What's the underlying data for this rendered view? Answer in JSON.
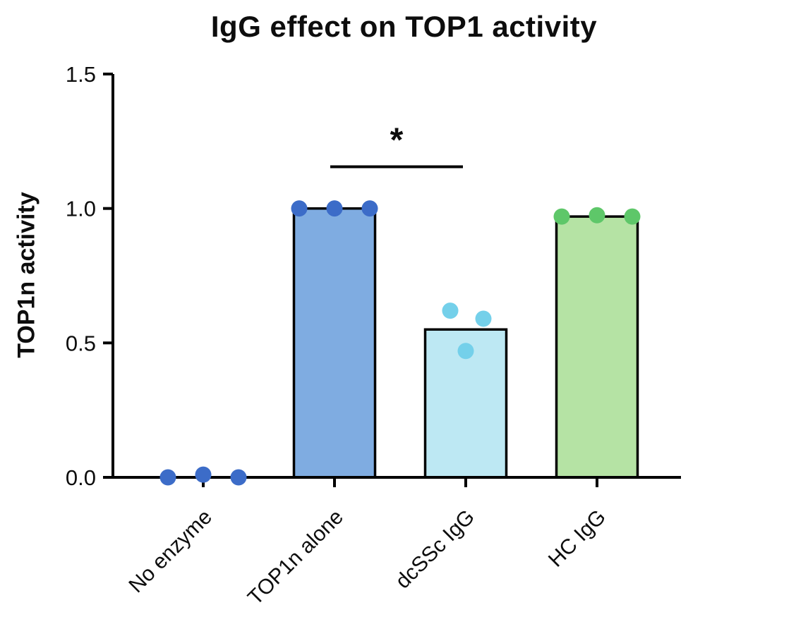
{
  "chart": {
    "title": "IgG effect on TOP1 activity",
    "y_axis_label": "TOP1n activity"
  },
  "chart_data": {
    "type": "bar",
    "title": "IgG effect on TOP1 activity",
    "xlabel": "",
    "ylabel": "TOP1n activity",
    "ylim": [
      0,
      1.5
    ],
    "yticks": [
      "0.0",
      "0.5",
      "1.0",
      "1.5"
    ],
    "grid": false,
    "legend": false,
    "categories": [
      "No enzyme",
      "TOP1n alone",
      "dcSSc IgG",
      "HC IgG"
    ],
    "series": [
      {
        "name": "bar-means",
        "values": [
          0,
          1.0,
          0.55,
          0.97
        ]
      }
    ],
    "points": [
      {
        "category": "No enzyme",
        "values": [
          0.0,
          0.01,
          0.0
        ],
        "offsets": [
          -50,
          0,
          50
        ]
      },
      {
        "category": "TOP1n alone",
        "values": [
          1.0,
          1.0,
          1.0
        ],
        "offsets": [
          -50,
          0,
          50
        ]
      },
      {
        "category": "dcSSc IgG",
        "values": [
          0.62,
          0.59,
          0.47
        ],
        "offsets": [
          -22,
          25,
          0
        ]
      },
      {
        "category": "HC IgG",
        "values": [
          0.97,
          0.975,
          0.97
        ],
        "offsets": [
          -50,
          0,
          50
        ]
      }
    ],
    "bar_colors": [
      "none",
      "#7FACE1",
      "#BDE8F3",
      "#B5E3A4"
    ],
    "point_colors": [
      "#3C6CC8",
      "#3C6CC8",
      "#74D0EA",
      "#5EC769"
    ],
    "bar_outline": "#000000",
    "axis_color": "#000000",
    "significance": {
      "label": "*",
      "between": [
        "TOP1n alone",
        "dcSSc IgG"
      ],
      "height": 1.155
    }
  }
}
